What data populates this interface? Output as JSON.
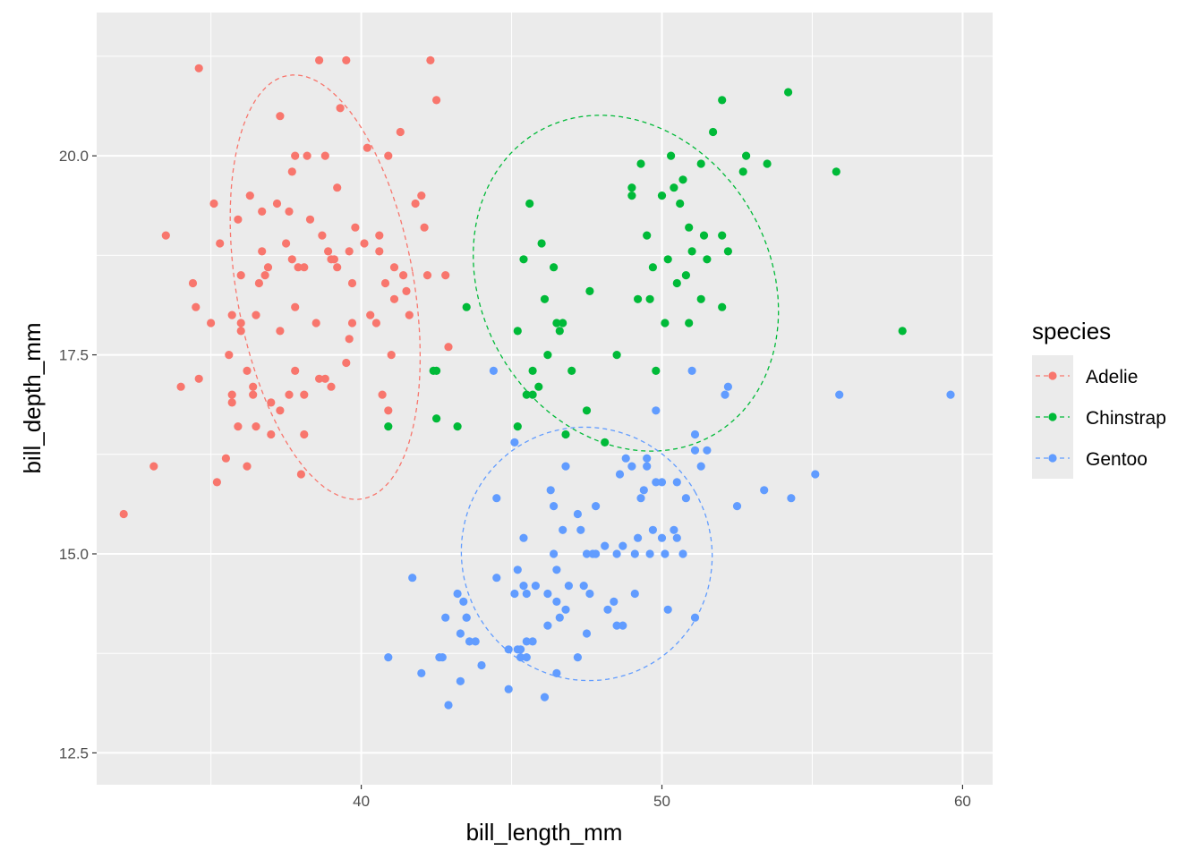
{
  "chart_data": {
    "type": "scatter",
    "xlabel": "bill_length_mm",
    "ylabel": "bill_depth_mm",
    "xlim": [
      31.2,
      61.0
    ],
    "ylim": [
      12.1,
      21.8
    ],
    "x_ticks": [
      {
        "value": 40,
        "label": "40"
      },
      {
        "value": 50,
        "label": "50"
      },
      {
        "value": 60,
        "label": "60"
      }
    ],
    "y_ticks": [
      {
        "value": 12.5,
        "label": "12.5"
      },
      {
        "value": 15.0,
        "label": "15.0"
      },
      {
        "value": 17.5,
        "label": "17.5"
      },
      {
        "value": 20.0,
        "label": "20.0"
      }
    ],
    "grid": true,
    "panel_background": "#ebebeb",
    "legend": {
      "title": "species",
      "position": "right"
    },
    "overlay": "dashed 95% confidence ellipse per species",
    "series": [
      {
        "name": "Adelie",
        "color": "#f8766d",
        "ellipse": {
          "center": [
            38.8,
            18.35
          ],
          "semi_axes": [
            5.9,
            2.7
          ],
          "angle_deg": 10
        },
        "points": [
          [
            32.1,
            15.5
          ],
          [
            33.1,
            16.1
          ],
          [
            33.5,
            19.0
          ],
          [
            34.0,
            17.1
          ],
          [
            34.4,
            18.4
          ],
          [
            34.5,
            18.1
          ],
          [
            34.6,
            21.1
          ],
          [
            34.6,
            17.2
          ],
          [
            35.0,
            17.9
          ],
          [
            35.1,
            19.4
          ],
          [
            35.3,
            18.9
          ],
          [
            35.5,
            16.2
          ],
          [
            35.6,
            17.5
          ],
          [
            35.7,
            18.0
          ],
          [
            35.7,
            17.0
          ],
          [
            35.7,
            16.9
          ],
          [
            35.9,
            16.6
          ],
          [
            35.9,
            19.2
          ],
          [
            36.0,
            17.8
          ],
          [
            36.0,
            18.5
          ],
          [
            36.0,
            17.9
          ],
          [
            36.2,
            16.1
          ],
          [
            36.2,
            17.3
          ],
          [
            36.3,
            19.5
          ],
          [
            36.4,
            17.1
          ],
          [
            36.4,
            17.0
          ],
          [
            36.5,
            18.0
          ],
          [
            36.5,
            16.6
          ],
          [
            36.6,
            18.4
          ],
          [
            36.7,
            19.3
          ],
          [
            36.7,
            18.8
          ],
          [
            36.8,
            18.5
          ],
          [
            36.9,
            18.6
          ],
          [
            37.0,
            16.9
          ],
          [
            37.0,
            16.5
          ],
          [
            37.2,
            19.4
          ],
          [
            37.3,
            16.8
          ],
          [
            37.3,
            17.8
          ],
          [
            37.3,
            20.5
          ],
          [
            37.5,
            18.9
          ],
          [
            37.6,
            17.0
          ],
          [
            37.6,
            19.3
          ],
          [
            37.7,
            18.7
          ],
          [
            37.7,
            19.8
          ],
          [
            37.8,
            20.0
          ],
          [
            37.8,
            17.3
          ],
          [
            37.8,
            18.1
          ],
          [
            37.9,
            18.6
          ],
          [
            38.1,
            18.6
          ],
          [
            38.1,
            17.0
          ],
          [
            38.1,
            16.5
          ],
          [
            38.2,
            20.0
          ],
          [
            38.3,
            19.2
          ],
          [
            38.5,
            17.9
          ],
          [
            38.6,
            21.2
          ],
          [
            38.6,
            17.2
          ],
          [
            38.7,
            19.0
          ],
          [
            38.8,
            17.2
          ],
          [
            38.8,
            20.0
          ],
          [
            38.9,
            18.8
          ],
          [
            39.0,
            17.1
          ],
          [
            39.0,
            18.7
          ],
          [
            39.1,
            18.7
          ],
          [
            39.2,
            19.6
          ],
          [
            39.2,
            18.6
          ],
          [
            39.3,
            20.6
          ],
          [
            39.5,
            17.4
          ],
          [
            39.6,
            17.7
          ],
          [
            39.6,
            18.8
          ],
          [
            39.7,
            18.4
          ],
          [
            39.7,
            17.9
          ],
          [
            39.8,
            19.1
          ],
          [
            40.1,
            18.9
          ],
          [
            40.2,
            20.1
          ],
          [
            40.3,
            18.0
          ],
          [
            40.5,
            17.9
          ],
          [
            40.6,
            18.8
          ],
          [
            40.6,
            19.0
          ],
          [
            40.7,
            17.0
          ],
          [
            40.8,
            18.4
          ],
          [
            40.9,
            16.8
          ],
          [
            41.0,
            17.5
          ],
          [
            41.1,
            18.2
          ],
          [
            41.1,
            18.6
          ],
          [
            41.3,
            20.3
          ],
          [
            41.4,
            18.5
          ],
          [
            41.5,
            18.3
          ],
          [
            41.6,
            18.0
          ],
          [
            41.8,
            19.4
          ],
          [
            42.0,
            19.5
          ],
          [
            42.1,
            19.1
          ],
          [
            42.2,
            18.5
          ],
          [
            42.3,
            21.2
          ],
          [
            42.5,
            20.7
          ],
          [
            42.8,
            18.5
          ],
          [
            42.9,
            17.6
          ],
          [
            39.5,
            21.2
          ],
          [
            40.9,
            20.0
          ],
          [
            38.0,
            16.0
          ],
          [
            35.2,
            15.9
          ]
        ]
      },
      {
        "name": "Chinstrap",
        "color": "#00ba38",
        "ellipse": {
          "center": [
            48.8,
            18.4
          ],
          "semi_axes": [
            9.6,
            2.2
          ],
          "angle_deg": 30
        },
        "points": [
          [
            40.9,
            16.6
          ],
          [
            42.4,
            17.3
          ],
          [
            42.5,
            17.3
          ],
          [
            42.5,
            16.7
          ],
          [
            43.2,
            16.6
          ],
          [
            43.5,
            18.1
          ],
          [
            45.2,
            17.8
          ],
          [
            45.2,
            16.6
          ],
          [
            45.4,
            18.7
          ],
          [
            45.5,
            17.0
          ],
          [
            45.6,
            19.4
          ],
          [
            45.7,
            17.3
          ],
          [
            45.7,
            17.0
          ],
          [
            45.9,
            17.1
          ],
          [
            46.0,
            18.9
          ],
          [
            46.1,
            18.2
          ],
          [
            46.2,
            17.5
          ],
          [
            46.4,
            18.6
          ],
          [
            46.5,
            17.9
          ],
          [
            46.6,
            17.8
          ],
          [
            46.7,
            17.9
          ],
          [
            46.8,
            16.5
          ],
          [
            47.0,
            17.3
          ],
          [
            47.5,
            16.8
          ],
          [
            47.6,
            18.3
          ],
          [
            48.1,
            16.4
          ],
          [
            48.5,
            17.5
          ],
          [
            49.0,
            19.5
          ],
          [
            49.0,
            19.6
          ],
          [
            49.2,
            18.2
          ],
          [
            49.3,
            19.9
          ],
          [
            49.5,
            19.0
          ],
          [
            49.6,
            18.2
          ],
          [
            49.7,
            18.6
          ],
          [
            49.8,
            17.3
          ],
          [
            50.0,
            19.5
          ],
          [
            50.1,
            17.9
          ],
          [
            50.2,
            18.7
          ],
          [
            50.3,
            20.0
          ],
          [
            50.5,
            18.4
          ],
          [
            50.6,
            19.4
          ],
          [
            50.7,
            19.7
          ],
          [
            50.8,
            18.5
          ],
          [
            50.9,
            19.1
          ],
          [
            51.0,
            18.8
          ],
          [
            51.3,
            18.2
          ],
          [
            51.3,
            19.9
          ],
          [
            51.4,
            19.0
          ],
          [
            51.5,
            18.7
          ],
          [
            51.7,
            20.3
          ],
          [
            52.0,
            20.7
          ],
          [
            52.0,
            19.0
          ],
          [
            52.0,
            18.1
          ],
          [
            52.2,
            18.8
          ],
          [
            52.7,
            19.8
          ],
          [
            52.8,
            20.0
          ],
          [
            53.5,
            19.9
          ],
          [
            54.2,
            20.8
          ],
          [
            55.8,
            19.8
          ],
          [
            58.0,
            17.8
          ],
          [
            50.9,
            17.9
          ],
          [
            50.4,
            19.6
          ]
        ]
      },
      {
        "name": "Gentoo",
        "color": "#619cff",
        "ellipse": {
          "center": [
            47.5,
            15.0
          ],
          "semi_axes": [
            8.3,
            1.6
          ],
          "angle_deg": 30
        },
        "points": [
          [
            40.9,
            13.7
          ],
          [
            41.7,
            14.7
          ],
          [
            42.0,
            13.5
          ],
          [
            42.6,
            13.7
          ],
          [
            42.7,
            13.7
          ],
          [
            42.8,
            14.2
          ],
          [
            42.9,
            13.1
          ],
          [
            43.2,
            14.5
          ],
          [
            43.3,
            13.4
          ],
          [
            43.3,
            14.0
          ],
          [
            43.4,
            14.4
          ],
          [
            43.5,
            14.2
          ],
          [
            43.6,
            13.9
          ],
          [
            43.8,
            13.9
          ],
          [
            44.0,
            13.6
          ],
          [
            44.4,
            17.3
          ],
          [
            44.5,
            14.7
          ],
          [
            44.9,
            13.3
          ],
          [
            44.9,
            13.8
          ],
          [
            45.1,
            14.5
          ],
          [
            45.2,
            13.8
          ],
          [
            45.2,
            14.8
          ],
          [
            45.3,
            13.7
          ],
          [
            45.3,
            13.8
          ],
          [
            45.4,
            14.6
          ],
          [
            45.4,
            15.2
          ],
          [
            45.5,
            13.7
          ],
          [
            45.5,
            13.9
          ],
          [
            45.5,
            14.5
          ],
          [
            45.7,
            13.9
          ],
          [
            45.8,
            14.6
          ],
          [
            46.1,
            13.2
          ],
          [
            46.2,
            14.1
          ],
          [
            46.2,
            14.5
          ],
          [
            46.3,
            15.8
          ],
          [
            46.4,
            15.6
          ],
          [
            46.5,
            13.5
          ],
          [
            46.5,
            14.4
          ],
          [
            46.5,
            14.8
          ],
          [
            46.6,
            14.2
          ],
          [
            46.7,
            15.3
          ],
          [
            46.8,
            14.3
          ],
          [
            46.8,
            16.1
          ],
          [
            46.9,
            14.6
          ],
          [
            47.2,
            13.7
          ],
          [
            47.2,
            15.5
          ],
          [
            47.3,
            15.3
          ],
          [
            47.4,
            14.6
          ],
          [
            47.5,
            14.0
          ],
          [
            47.5,
            15.0
          ],
          [
            47.6,
            14.5
          ],
          [
            47.7,
            15.0
          ],
          [
            47.8,
            15.0
          ],
          [
            48.1,
            15.1
          ],
          [
            48.2,
            14.3
          ],
          [
            48.4,
            14.4
          ],
          [
            48.5,
            14.1
          ],
          [
            48.5,
            15.0
          ],
          [
            48.6,
            16.0
          ],
          [
            48.7,
            14.1
          ],
          [
            48.7,
            15.1
          ],
          [
            48.8,
            16.2
          ],
          [
            49.0,
            16.1
          ],
          [
            49.1,
            14.5
          ],
          [
            49.1,
            15.0
          ],
          [
            49.2,
            15.2
          ],
          [
            49.3,
            15.7
          ],
          [
            49.4,
            15.8
          ],
          [
            49.5,
            16.1
          ],
          [
            49.5,
            16.2
          ],
          [
            49.6,
            15.0
          ],
          [
            49.8,
            15.9
          ],
          [
            49.8,
            16.8
          ],
          [
            50.0,
            15.2
          ],
          [
            50.0,
            15.9
          ],
          [
            50.1,
            15.0
          ],
          [
            50.2,
            14.3
          ],
          [
            50.4,
            15.3
          ],
          [
            50.5,
            15.9
          ],
          [
            50.5,
            15.2
          ],
          [
            50.7,
            15.0
          ],
          [
            50.8,
            15.7
          ],
          [
            51.1,
            16.3
          ],
          [
            51.1,
            14.2
          ],
          [
            51.1,
            16.5
          ],
          [
            51.3,
            16.1
          ],
          [
            51.5,
            16.3
          ],
          [
            52.1,
            17.0
          ],
          [
            52.2,
            17.1
          ],
          [
            52.5,
            15.6
          ],
          [
            53.4,
            15.8
          ],
          [
            54.3,
            15.7
          ],
          [
            55.1,
            16.0
          ],
          [
            55.9,
            17.0
          ],
          [
            59.6,
            17.0
          ],
          [
            45.1,
            16.4
          ],
          [
            46.4,
            15.0
          ],
          [
            47.8,
            15.6
          ],
          [
            49.7,
            15.3
          ],
          [
            51.0,
            17.3
          ],
          [
            43.5,
            14.2
          ],
          [
            44.5,
            15.7
          ]
        ]
      }
    ]
  }
}
